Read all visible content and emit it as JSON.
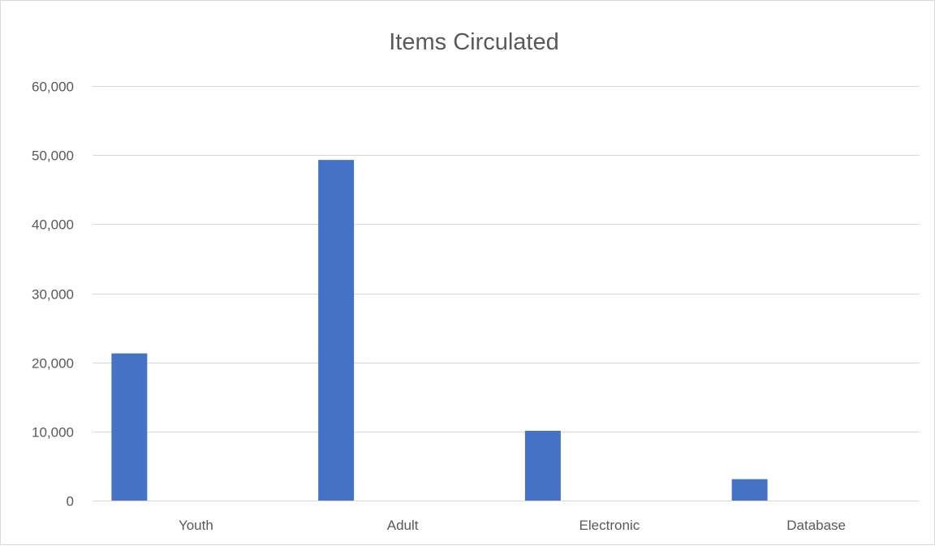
{
  "chart_data": {
    "type": "bar",
    "title": "Items Circulated",
    "xlabel": "",
    "ylabel": "",
    "categories": [
      "Youth",
      "Adult",
      "Electronic",
      "Database"
    ],
    "series": [
      {
        "values": [
          21300,
          49300,
          10100,
          3100
        ]
      }
    ],
    "ylim": [
      0,
      60000
    ],
    "yticks": [
      0,
      10000,
      20000,
      30000,
      40000,
      50000,
      60000
    ],
    "ytick_labels": [
      "0",
      "10,000",
      "20,000",
      "30,000",
      "40,000",
      "50,000",
      "60,000"
    ],
    "grid": true,
    "legend": "none",
    "bar_color": "#4472c4",
    "grid_color": "#d9d9d9",
    "text_color": "#595959"
  }
}
